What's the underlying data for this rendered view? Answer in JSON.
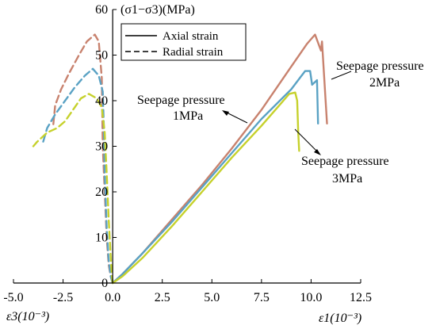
{
  "chart_data": {
    "type": "line",
    "ylabel": "(σ1−σ3)(MPa)",
    "xlabel_axial": "ε1(10⁻³)",
    "xlabel_radial": "ε3(10⁻³)",
    "xlim": [
      -5.0,
      12.5
    ],
    "ylim": [
      0,
      60
    ],
    "xticks": [
      "-5.0",
      "-2.5",
      "0.0",
      "2.5",
      "5.0",
      "7.5",
      "10.0",
      "12.5"
    ],
    "xtick_values": [
      -5.0,
      -2.5,
      0.0,
      2.5,
      5.0,
      7.5,
      10.0,
      12.5
    ],
    "yticks": [
      "0",
      "10",
      "20",
      "30",
      "40",
      "50",
      "60"
    ],
    "ytick_values": [
      0,
      10,
      20,
      30,
      40,
      50,
      60
    ],
    "legend": {
      "position": "top-left",
      "entries": [
        {
          "label": "Axial strain",
          "style": "solid"
        },
        {
          "label": "Radial strain",
          "style": "dashed"
        }
      ]
    },
    "annotations": [
      {
        "line1": "Seepage pressure",
        "line2": "1MPa",
        "series": "1MPa"
      },
      {
        "line1": "Seepage pressure",
        "line2": "2MPa",
        "series": "2MPa"
      },
      {
        "line1": "Seepage pressure",
        "line2": "3MPa",
        "series": "3MPa"
      }
    ],
    "series": [
      {
        "name": "1MPa",
        "color": "#c8826e",
        "axial": [
          [
            0,
            0
          ],
          [
            0.5,
            2.0
          ],
          [
            1.5,
            6.5
          ],
          [
            3.0,
            14.0
          ],
          [
            4.5,
            21.5
          ],
          [
            6.0,
            29.5
          ],
          [
            7.5,
            38.0
          ],
          [
            9.0,
            47.5
          ],
          [
            9.8,
            52.5
          ],
          [
            10.2,
            54.5
          ],
          [
            10.5,
            51.0
          ],
          [
            10.55,
            53.0
          ],
          [
            10.8,
            35.0
          ]
        ],
        "radial": [
          [
            0,
            0
          ],
          [
            -0.1,
            1.5
          ],
          [
            -0.2,
            4.0
          ],
          [
            -0.3,
            10.0
          ],
          [
            -0.4,
            20.0
          ],
          [
            -0.5,
            30.0
          ],
          [
            -0.55,
            45.0
          ],
          [
            -0.7,
            53.0
          ],
          [
            -0.9,
            54.5
          ],
          [
            -1.3,
            53.0
          ],
          [
            -1.7,
            50.0
          ],
          [
            -2.2,
            46.0
          ],
          [
            -2.6,
            42.5
          ],
          [
            -2.9,
            39.0
          ],
          [
            -3.0,
            34.5
          ]
        ]
      },
      {
        "name": "2MPa",
        "color": "#5aa2c4",
        "axial": [
          [
            0,
            0
          ],
          [
            0.5,
            2.0
          ],
          [
            1.5,
            6.5
          ],
          [
            3.0,
            13.5
          ],
          [
            4.5,
            21.0
          ],
          [
            6.0,
            28.5
          ],
          [
            7.5,
            36.0
          ],
          [
            9.0,
            42.5
          ],
          [
            9.7,
            46.5
          ],
          [
            9.95,
            46.5
          ],
          [
            10.05,
            43.5
          ],
          [
            10.3,
            44.5
          ],
          [
            10.35,
            35.0
          ]
        ],
        "radial": [
          [
            0,
            0
          ],
          [
            -0.1,
            1.5
          ],
          [
            -0.2,
            5.0
          ],
          [
            -0.3,
            12.0
          ],
          [
            -0.4,
            24.0
          ],
          [
            -0.45,
            35.0
          ],
          [
            -0.5,
            42.0
          ],
          [
            -0.7,
            45.5
          ],
          [
            -1.0,
            47.0
          ],
          [
            -1.4,
            45.5
          ],
          [
            -1.9,
            43.0
          ],
          [
            -2.4,
            40.0
          ],
          [
            -2.9,
            37.0
          ],
          [
            -3.3,
            34.0
          ],
          [
            -3.5,
            31.0
          ]
        ]
      },
      {
        "name": "3MPa",
        "color": "#c6d12c",
        "axial": [
          [
            0,
            0
          ],
          [
            0.5,
            1.5
          ],
          [
            1.5,
            5.5
          ],
          [
            3.0,
            12.5
          ],
          [
            4.5,
            20.0
          ],
          [
            6.0,
            27.5
          ],
          [
            7.5,
            34.5
          ],
          [
            8.5,
            39.5
          ],
          [
            8.9,
            41.5
          ],
          [
            9.2,
            41.8
          ],
          [
            9.3,
            40.0
          ],
          [
            9.35,
            33.0
          ],
          [
            9.4,
            29.0
          ]
        ],
        "radial": [
          [
            0,
            0
          ],
          [
            -0.05,
            2.0
          ],
          [
            -0.1,
            6.0
          ],
          [
            -0.2,
            14.0
          ],
          [
            -0.3,
            24.0
          ],
          [
            -0.4,
            33.0
          ],
          [
            -0.55,
            38.5
          ],
          [
            -0.8,
            40.5
          ],
          [
            -1.2,
            41.5
          ],
          [
            -1.6,
            40.5
          ],
          [
            -2.0,
            38.0
          ],
          [
            -2.4,
            35.5
          ],
          [
            -2.8,
            34.0
          ],
          [
            -3.3,
            33.0
          ],
          [
            -3.8,
            31.0
          ],
          [
            -4.0,
            30.0
          ]
        ]
      }
    ]
  }
}
